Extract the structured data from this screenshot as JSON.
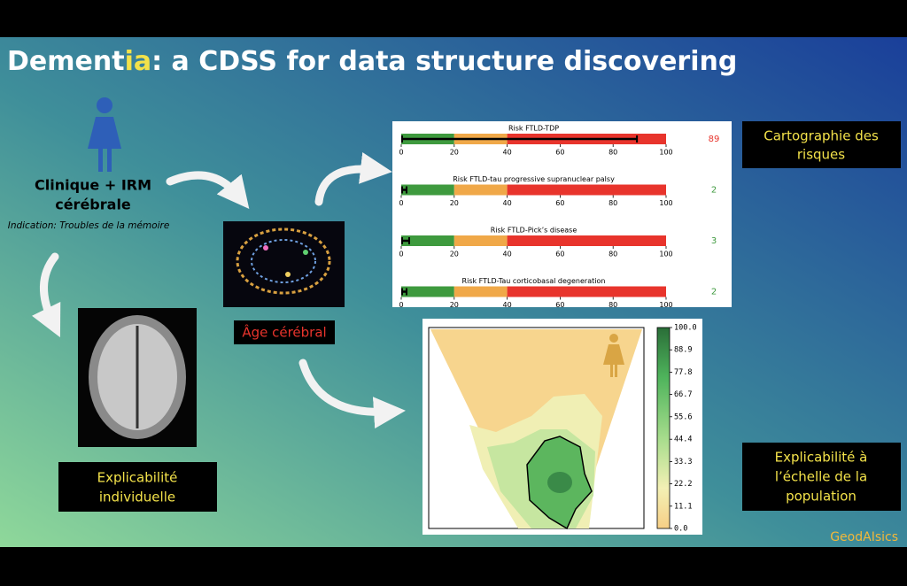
{
  "title": {
    "parts": [
      "Dement",
      "ia",
      ": a CDSS for data structure discovering"
    ]
  },
  "patient": {
    "label_lines": [
      "Clinique + IRM",
      "cérébrale"
    ],
    "indication": "Indication: Troubles de la mémoire"
  },
  "brain_age_label": "Âge cérébral",
  "individual_box": [
    "Explicabilité",
    "individuelle"
  ],
  "risk_box": [
    "Cartographie des",
    "risques"
  ],
  "population_box": [
    "Explicabilité à",
    "l’échelle de la",
    "population"
  ],
  "brand": "GeodAIsics",
  "risk_chart": {
    "xlim": [
      0,
      100
    ],
    "xticks": [
      0,
      20,
      40,
      60,
      80,
      100
    ],
    "zones": [
      {
        "from": 0,
        "to": 20,
        "color": "#3e9a3e"
      },
      {
        "from": 20,
        "to": 40,
        "color": "#f0a848"
      },
      {
        "from": 40,
        "to": 100,
        "color": "#e8342c"
      }
    ],
    "gauges": [
      {
        "title": "Risk FTLD-TDP",
        "value": 89,
        "value_color": "#e8342c"
      },
      {
        "title": "Risk FTLD-tau progressive supranuclear palsy",
        "value": 2,
        "value_color": "#3e9a3e"
      },
      {
        "title": "Risk FTLD-Pick’s disease",
        "value": 3,
        "value_color": "#3e9a3e"
      },
      {
        "title": "Risk FTLD-Tau corticobasal degeneration",
        "value": 2,
        "value_color": "#3e9a3e"
      }
    ]
  },
  "map_colorbar": {
    "ylim": [
      0,
      100
    ],
    "yticks": [
      {
        "value": 0,
        "label": "0.0"
      },
      11.1,
      22.2,
      33.3,
      44.4,
      55.6,
      66.7,
      77.8,
      88.9,
      {
        "value": 100,
        "label": "100.0"
      }
    ]
  }
}
